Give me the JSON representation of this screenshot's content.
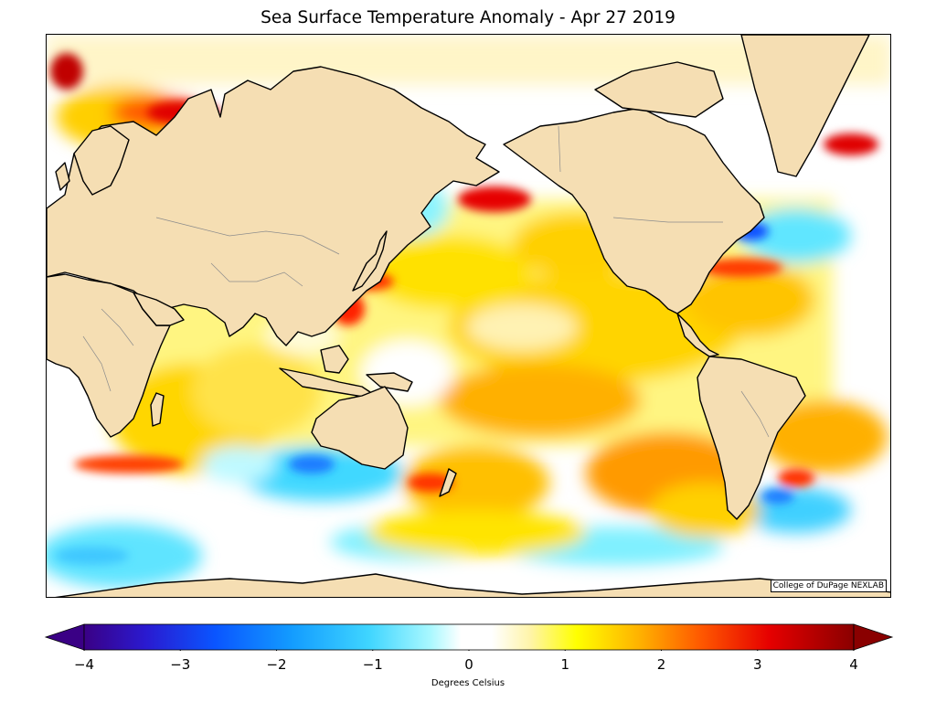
{
  "title": "Sea Surface Temperature Anomaly - Apr 27 2019",
  "credit": "College of DuPage NEXLAB",
  "colorbar": {
    "label": "Degrees Celsius",
    "min": -4,
    "max": 4,
    "ticks": [
      "−4",
      "−3",
      "−2",
      "−1",
      "0",
      "1",
      "2",
      "3",
      "4"
    ],
    "tick_values": [
      -4,
      -3,
      -2,
      -1,
      0,
      1,
      2,
      3,
      4
    ],
    "colors": [
      "#2a0074",
      "#1a2fd6",
      "#0a73ff",
      "#19b6ff",
      "#7ff5ff",
      "#ffffff",
      "#ffffff",
      "#ffff00",
      "#ffb200",
      "#ff5a00",
      "#e60000",
      "#8a0000"
    ],
    "extend": "both"
  },
  "map": {
    "projection": "Miller cylindrical, Pacific-centered",
    "land_color": "#f5deb3",
    "coastline_color": "#000000",
    "border_color": "#8c8c8c"
  }
}
